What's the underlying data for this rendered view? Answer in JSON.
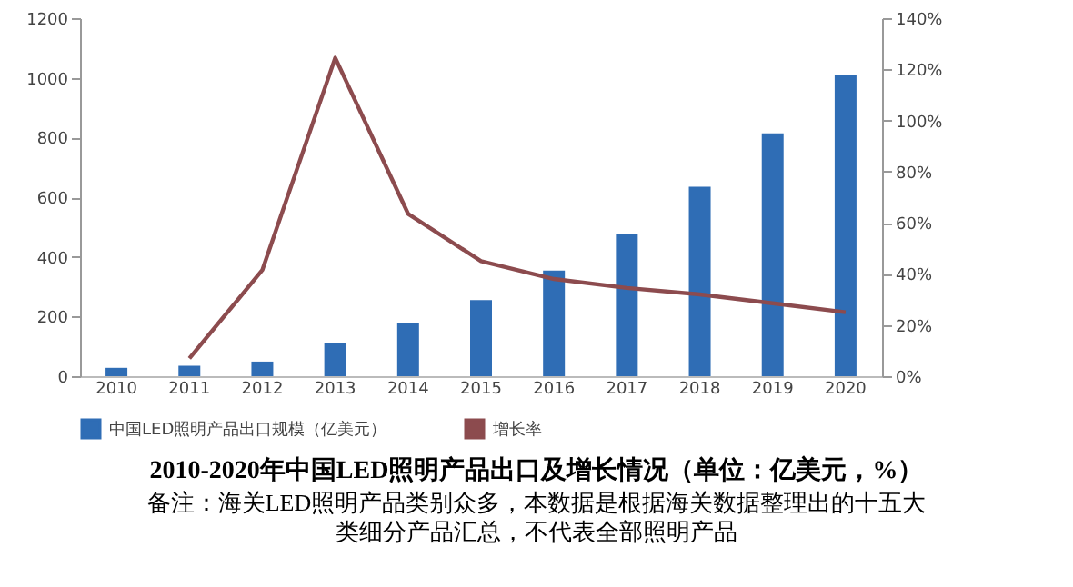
{
  "chart_data": {
    "type": "bar",
    "title": "2010-2020年中国LED照明产品出口及增长情况（单位：亿美元，%）",
    "annotations": [
      "备注：海关LED照明产品类别众多，本数据是根据海关数据整理出的十五大类细分产品汇总，不代表全部照明产品"
    ],
    "categories": [
      "2010",
      "2011",
      "2012",
      "2013",
      "2014",
      "2015",
      "2016",
      "2017",
      "2018",
      "2019",
      "2020"
    ],
    "series": [
      {
        "name": "中国LED照明产品出口规模（亿美元）",
        "color": "#2f6db5",
        "values": [
          28,
          35,
          49,
          110,
          178,
          255,
          354,
          476,
          635,
          814,
          1011
        ]
      },
      {
        "name": "增长率",
        "type": "line",
        "axis": "y2",
        "color": "#8c4b4e",
        "values": [
          null,
          7,
          41.5,
          124.5,
          63.5,
          45,
          38,
          34.5,
          32,
          28.5,
          25
        ]
      }
    ],
    "ylim": [
      0,
      1200
    ],
    "yticks": [
      0,
      200,
      400,
      600,
      800,
      1000,
      1200
    ],
    "y2lim": [
      0,
      140
    ],
    "y2ticks": [
      {
        "value": 0,
        "label": "0%"
      },
      {
        "value": 20,
        "label": "20%"
      },
      {
        "value": 40,
        "label": "40%"
      },
      {
        "value": 60,
        "label": "60%"
      },
      {
        "value": 80,
        "label": "80%"
      },
      {
        "value": 100,
        "label": "100%"
      },
      {
        "value": 120,
        "label": "120%"
      },
      {
        "value": 140,
        "label": "140%"
      }
    ],
    "legend": "bottom",
    "grid": false
  }
}
